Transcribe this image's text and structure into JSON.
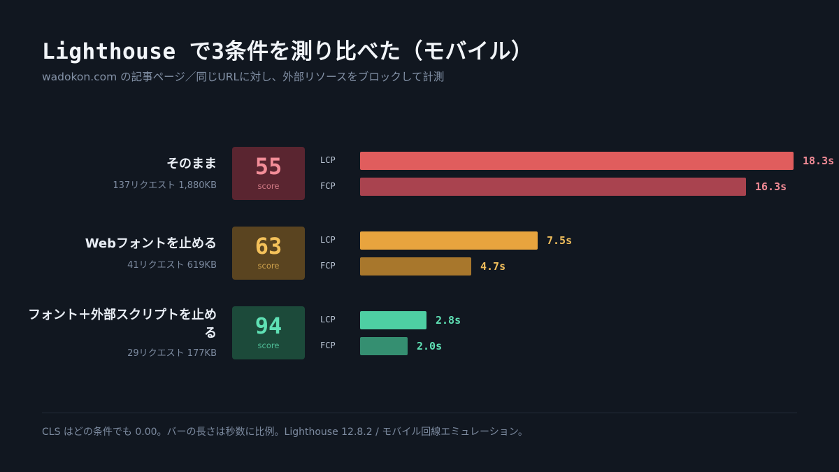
{
  "header": {
    "title": "Lighthouse で3条件を測り比べた（モバイル）",
    "subtitle": "wadokon.com の記事ページ／同じURLに対し、外部リソースをブロックして計測"
  },
  "chart_data": {
    "type": "bar",
    "orientation": "horizontal",
    "unit": "s",
    "metrics": [
      "LCP",
      "FCP"
    ],
    "score_label": "score",
    "xlim": [
      0,
      18.3
    ],
    "categories": [
      {
        "name": "そのまま",
        "meta": "137リクエスト  1,880KB",
        "score": 55,
        "lcp": 18.3,
        "lcp_label": "18.3s",
        "fcp": 16.3,
        "fcp_label": "16.3s",
        "colors": {
          "box_bg": "#5a2530",
          "score": "#f38d98",
          "score_lbl": "#d27b86",
          "lcp_bar": "#e05d5d",
          "fcp_bar": "#a9434f",
          "value": "#f08a95"
        }
      },
      {
        "name": "Webフォントを止める",
        "meta": "41リクエスト  619KB",
        "score": 63,
        "lcp": 7.5,
        "lcp_label": "7.5s",
        "fcp": 4.7,
        "fcp_label": "4.7s",
        "colors": {
          "box_bg": "#5a4420",
          "score": "#f4c15a",
          "score_lbl": "#cfa24d",
          "lcp_bar": "#e8a43e",
          "fcp_bar": "#a8772c",
          "value": "#f0be5c"
        }
      },
      {
        "name": "フォント＋外部スクリプトを止める",
        "meta": "29リクエスト  177KB",
        "score": 94,
        "lcp": 2.8,
        "lcp_label": "2.8s",
        "fcp": 2.0,
        "fcp_label": "2.0s",
        "colors": {
          "box_bg": "#1c4a3a",
          "score": "#5fe0b4",
          "score_lbl": "#4fbd97",
          "lcp_bar": "#4ecfa3",
          "fcp_bar": "#358f71",
          "value": "#5fe0b4"
        }
      }
    ]
  },
  "footnote": "CLS はどの条件でも 0.00。バーの長さは秒数に比例。Lighthouse 12.8.2 / モバイル回線エミュレーション。"
}
